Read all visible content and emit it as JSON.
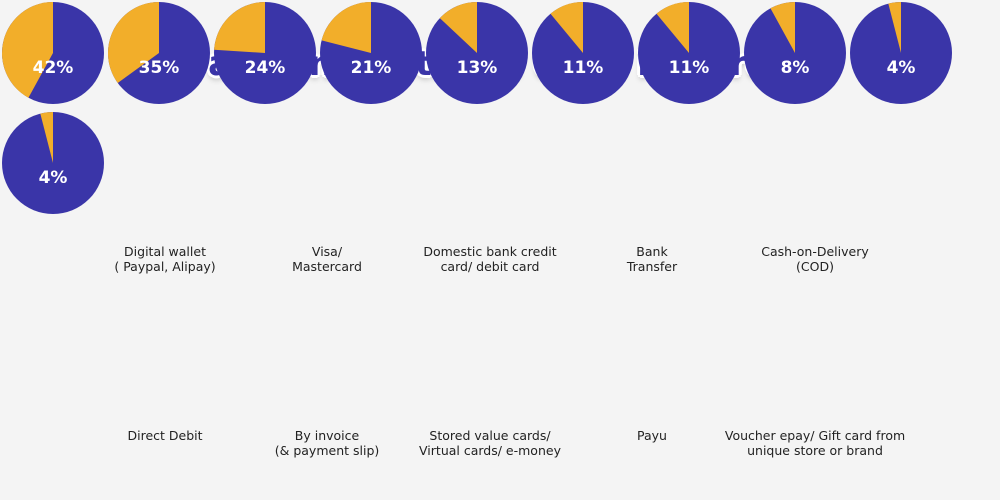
{
  "title": "Payment Methods Used in Europe",
  "colors": {
    "primary": "#3a35a8",
    "secondary": "#f2ae2a",
    "background": "#f4f4f4"
  },
  "chart_data": {
    "type": "pie",
    "title": "Payment Methods Used in Europe",
    "items": [
      {
        "label_lines": [
          "Digital wallet",
          "( Paypal, Alipay)"
        ],
        "value": 42,
        "value_label": "42%"
      },
      {
        "label_lines": [
          "Visa/",
          "Mastercard"
        ],
        "value": 35,
        "value_label": "35%"
      },
      {
        "label_lines": [
          "Domestic bank credit",
          "card/ debit card"
        ],
        "value": 24,
        "value_label": "24%"
      },
      {
        "label_lines": [
          "Bank",
          "Transfer"
        ],
        "value": 21,
        "value_label": "21%"
      },
      {
        "label_lines": [
          "Cash-on-Delivery",
          "(COD)"
        ],
        "value": 13,
        "value_label": "13%"
      },
      {
        "label_lines": [
          "Direct Debit"
        ],
        "value": 11,
        "value_label": "11%"
      },
      {
        "label_lines": [
          "By invoice",
          "(& payment slip)"
        ],
        "value": 11,
        "value_label": "11%"
      },
      {
        "label_lines": [
          "Stored value cards/",
          "Virtual cards/ e-money"
        ],
        "value": 8,
        "value_label": "8%"
      },
      {
        "label_lines": [
          "Payu"
        ],
        "value": 4,
        "value_label": "4%"
      },
      {
        "label_lines": [
          "Voucher epay/ Gift card from",
          "unique store or brand"
        ],
        "value": 4,
        "value_label": "4%"
      }
    ]
  }
}
